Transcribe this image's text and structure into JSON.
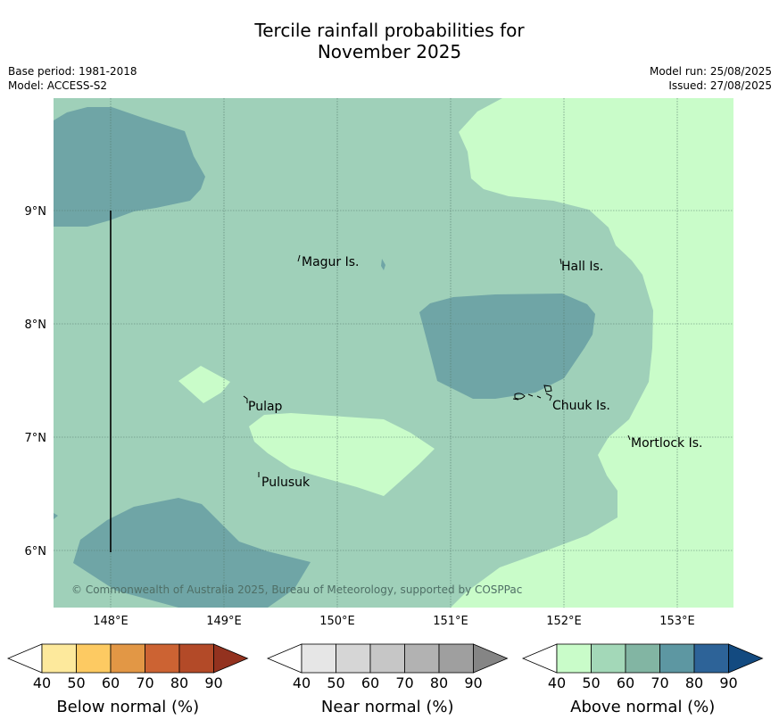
{
  "title_line1": "Tercile rainfall probabilities for",
  "title_line2": "November 2025",
  "base_period": "Base period: 1981-2018",
  "model": "Model: ACCESS-S2",
  "model_run": "Model run: 25/08/2025",
  "issued": "Issued: 27/08/2025",
  "latitude_labels": [
    "9°N",
    "8°N",
    "7°N",
    "6°N"
  ],
  "longitude_labels": [
    "148°E",
    "149°E",
    "150°E",
    "151°E",
    "152°E",
    "153°E"
  ],
  "places": [
    "Magur Is.",
    "Hall Is.",
    "Pulap",
    "Chuuk Is.",
    "Mortlock Is.",
    "Pulusuk"
  ],
  "copyright": "© Commonwealth of Australia 2025, Bureau of Meteorology, supported by COSPPac",
  "colors": {
    "above_50_60": "#9fd0b9",
    "above_40_50": "#c9fcc9",
    "above_60_70": "#6fa5a6"
  },
  "colorbars": [
    {
      "title": "Below normal (%)",
      "ticks": [
        "40",
        "50",
        "60",
        "70",
        "80",
        "90"
      ],
      "colors": [
        "#ffffff",
        "#fde99c",
        "#fdca62",
        "#e29745",
        "#cc6333",
        "#b34a28",
        "#93321f"
      ]
    },
    {
      "title": "Near normal (%)",
      "ticks": [
        "40",
        "50",
        "60",
        "70",
        "80",
        "90"
      ],
      "colors": [
        "#ffffff",
        "#e6e6e6",
        "#d6d6d6",
        "#c6c6c6",
        "#b2b2b2",
        "#9f9f9f",
        "#858585"
      ]
    },
    {
      "title": "Above normal (%)",
      "ticks": [
        "40",
        "50",
        "60",
        "70",
        "80",
        "90"
      ],
      "colors": [
        "#ffffff",
        "#c9fcc9",
        "#a3d8b8",
        "#82b5a3",
        "#5d97a2",
        "#2d6398",
        "#134a80"
      ]
    }
  ]
}
